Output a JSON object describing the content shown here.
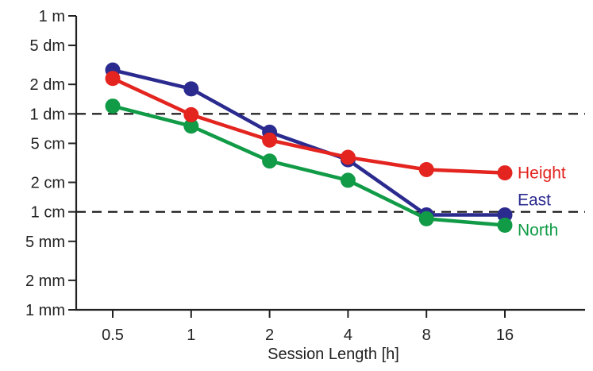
{
  "chart_data": {
    "type": "line",
    "title": "",
    "xlabel": "Session Length [h]",
    "ylabel": "",
    "x_scale": "log",
    "y_scale": "log",
    "x": [
      0.5,
      1,
      2,
      4,
      8,
      16
    ],
    "x_tick_labels": [
      "0.5",
      "1",
      "2",
      "4",
      "8",
      "16"
    ],
    "y_ticks": [
      {
        "value": 0.001,
        "label": "1 mm"
      },
      {
        "value": 0.002,
        "label": "2 mm"
      },
      {
        "value": 0.005,
        "label": "5 mm"
      },
      {
        "value": 0.01,
        "label": "1 cm"
      },
      {
        "value": 0.02,
        "label": "2 cm"
      },
      {
        "value": 0.05,
        "label": "5 cm"
      },
      {
        "value": 0.1,
        "label": "1 dm"
      },
      {
        "value": 0.2,
        "label": "2 dm"
      },
      {
        "value": 0.5,
        "label": "5 dm"
      },
      {
        "value": 1,
        "label": "1 m"
      }
    ],
    "ylim": [
      0.001,
      1
    ],
    "reference_lines": [
      0.1,
      0.01
    ],
    "grid": false,
    "series": [
      {
        "name": "Height",
        "color": "#e3241f",
        "values": [
          0.23,
          0.098,
          0.054,
          0.036,
          0.027,
          0.025
        ]
      },
      {
        "name": "East",
        "color": "#2b2a8f",
        "values": [
          0.28,
          0.18,
          0.065,
          0.034,
          0.0093,
          0.0093
        ]
      },
      {
        "name": "North",
        "color": "#119b47",
        "values": [
          0.12,
          0.075,
          0.033,
          0.021,
          0.0085,
          0.0073
        ]
      }
    ]
  }
}
